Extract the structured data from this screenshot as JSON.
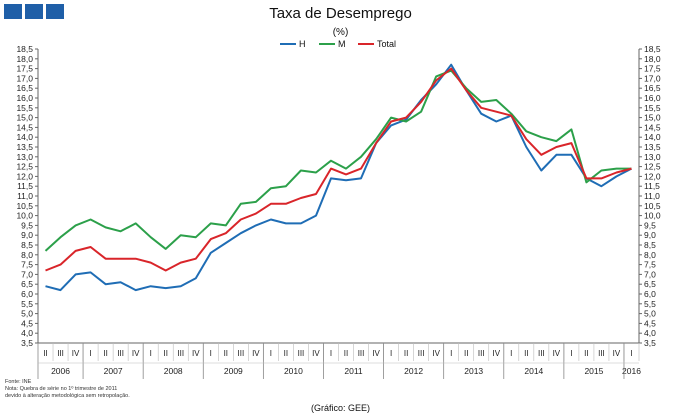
{
  "header": {
    "title": "Taxa de Desemprego",
    "unit": "(%)"
  },
  "footer": {
    "source": "Fonte: INE",
    "note_line1": "Nota: Quebra de série no 1º trimestre de 2011",
    "note_line2": "devido à alteração metodológica sem retropolação.",
    "graphic_credit": "(Gráfico: GEE)"
  },
  "colors": {
    "H": "#1f6db5",
    "M": "#2ca04a",
    "Total": "#d9252a",
    "brand": "#1f5fa8"
  },
  "chart_data": {
    "type": "line",
    "title": "Taxa de Desemprego",
    "ylabel": "(%)",
    "xlabel": "",
    "ylim": [
      3.5,
      18.5
    ],
    "ytick_step": 0.5,
    "legend": "top-center",
    "quarter_labels": [
      "II",
      "III",
      "IV",
      "I",
      "II",
      "III",
      "IV",
      "I",
      "II",
      "III",
      "IV",
      "I",
      "II",
      "III",
      "IV",
      "I",
      "II",
      "III",
      "IV",
      "I",
      "II",
      "III",
      "IV",
      "I",
      "II",
      "III",
      "IV",
      "I",
      "II",
      "III",
      "IV",
      "I",
      "II",
      "III",
      "IV",
      "I",
      "II",
      "III",
      "IV",
      "I"
    ],
    "years": [
      {
        "label": "2006",
        "start": 0,
        "end": 2
      },
      {
        "label": "2007",
        "start": 3,
        "end": 6
      },
      {
        "label": "2008",
        "start": 7,
        "end": 10
      },
      {
        "label": "2009",
        "start": 11,
        "end": 14
      },
      {
        "label": "2010",
        "start": 15,
        "end": 18
      },
      {
        "label": "2011",
        "start": 19,
        "end": 22
      },
      {
        "label": "2012",
        "start": 23,
        "end": 26
      },
      {
        "label": "2013",
        "start": 27,
        "end": 30
      },
      {
        "label": "2014",
        "start": 31,
        "end": 34
      },
      {
        "label": "2015",
        "start": 35,
        "end": 38
      },
      {
        "label": "2016",
        "start": 39,
        "end": 39
      }
    ],
    "series": [
      {
        "name": "H",
        "color": "#1f6db5",
        "values": [
          6.4,
          6.2,
          7.0,
          7.1,
          6.5,
          6.6,
          6.2,
          6.4,
          6.3,
          6.4,
          6.8,
          8.1,
          8.6,
          9.1,
          9.5,
          9.8,
          9.6,
          9.6,
          10.0,
          11.9,
          11.8,
          11.9,
          13.7,
          14.6,
          14.9,
          15.9,
          16.7,
          17.7,
          16.4,
          15.2,
          14.8,
          15.1,
          13.5,
          12.3,
          13.1,
          13.1,
          11.9,
          11.5,
          12.0,
          12.4
        ]
      },
      {
        "name": "M",
        "color": "#2ca04a",
        "values": [
          8.2,
          8.9,
          9.5,
          9.8,
          9.4,
          9.2,
          9.6,
          8.9,
          8.3,
          9.0,
          8.9,
          9.6,
          9.5,
          10.6,
          10.7,
          11.4,
          11.5,
          12.3,
          12.2,
          12.8,
          12.4,
          13.0,
          13.9,
          15.0,
          14.8,
          15.3,
          17.1,
          17.4,
          16.5,
          15.8,
          15.9,
          15.2,
          14.3,
          14.0,
          13.8,
          14.4,
          11.7,
          12.3,
          12.4,
          12.4
        ]
      },
      {
        "name": "Total",
        "color": "#d9252a",
        "values": [
          7.2,
          7.5,
          8.2,
          8.4,
          7.8,
          7.8,
          7.8,
          7.6,
          7.2,
          7.6,
          7.8,
          8.8,
          9.1,
          9.8,
          10.1,
          10.6,
          10.6,
          10.9,
          11.1,
          12.4,
          12.1,
          12.4,
          13.7,
          14.8,
          15.0,
          15.8,
          16.9,
          17.5,
          16.4,
          15.5,
          15.3,
          15.1,
          13.9,
          13.1,
          13.5,
          13.7,
          11.9,
          11.9,
          12.2,
          12.4
        ]
      }
    ]
  }
}
